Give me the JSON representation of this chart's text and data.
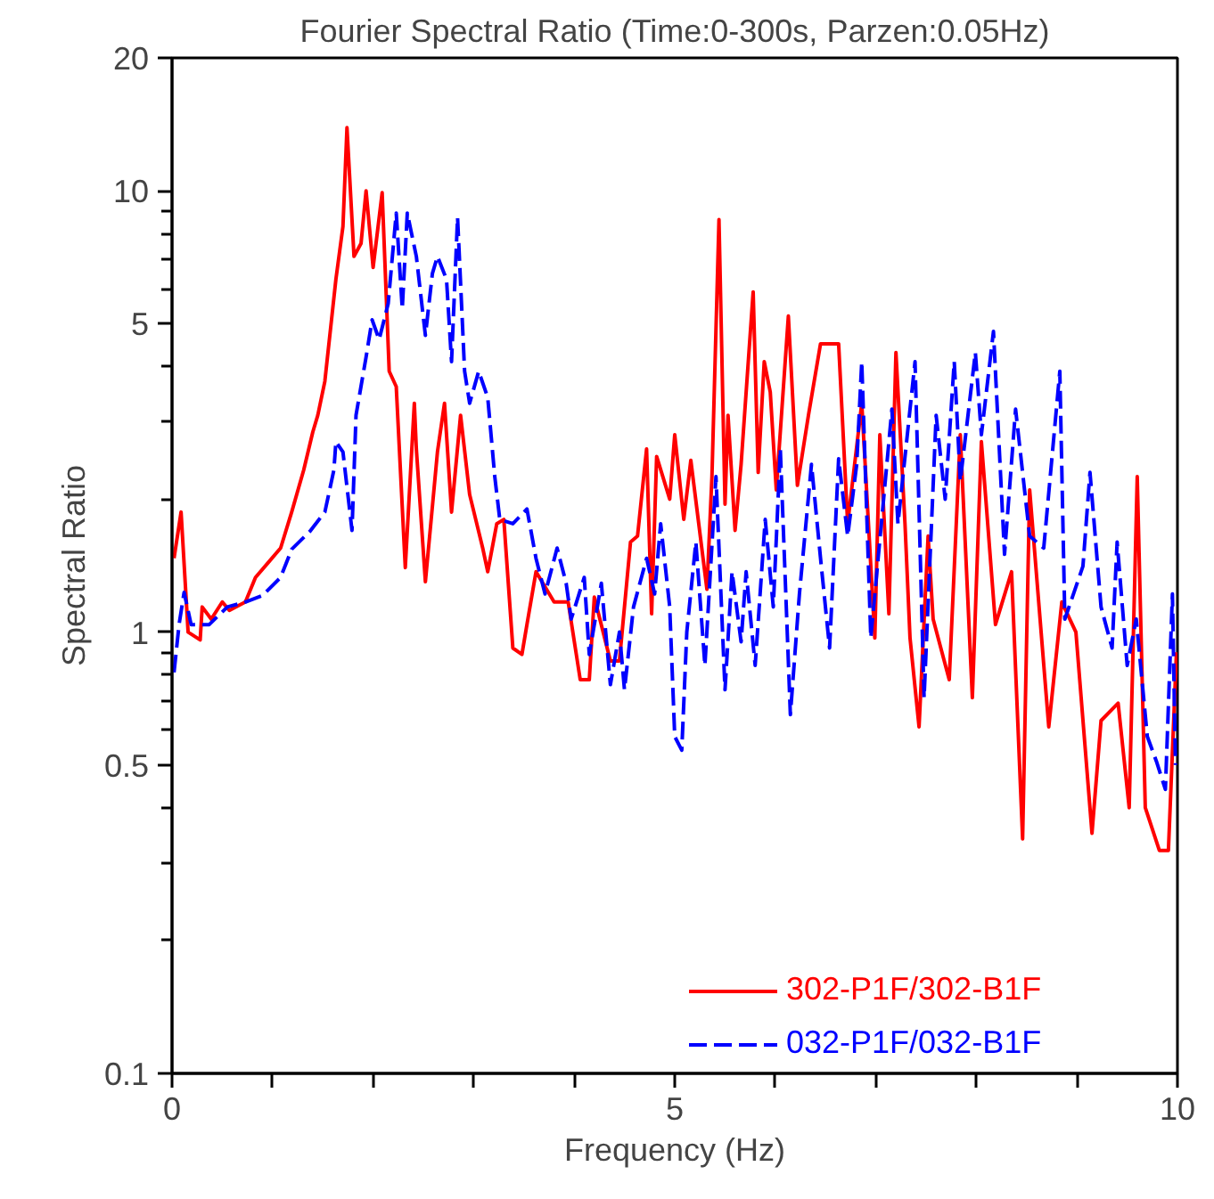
{
  "chart_data": {
    "type": "line",
    "title": "Fourier Spectral Ratio (Time:0-300s, Parzen:0.05Hz)",
    "xlabel": "Frequency (Hz)",
    "ylabel": "Spectral Ratio",
    "log": "y",
    "grid": false,
    "legend": "bottom right",
    "xlim": [
      0,
      10
    ],
    "ylim": [
      0.1,
      20
    ],
    "xticks": [
      0,
      {
        "value": 1,
        "label": null
      },
      {
        "value": 2,
        "label": null
      },
      {
        "value": 3,
        "label": null
      },
      {
        "value": 4,
        "label": null
      },
      5,
      {
        "value": 6,
        "label": null
      },
      {
        "value": 7,
        "label": null
      },
      {
        "value": 8,
        "label": null
      },
      {
        "value": 9,
        "label": null
      },
      10
    ],
    "yticks": [
      0.1,
      {
        "value": 0.2,
        "label": null
      },
      {
        "value": 0.3,
        "label": null
      },
      {
        "value": 0.4,
        "label": null
      },
      0.5,
      {
        "value": 0.6,
        "label": null
      },
      {
        "value": 0.7,
        "label": null
      },
      {
        "value": 0.8,
        "label": null
      },
      {
        "value": 0.9,
        "label": null
      },
      1,
      {
        "value": 2,
        "label": null
      },
      {
        "value": 3,
        "label": null
      },
      {
        "value": 4,
        "label": null
      },
      5,
      {
        "value": 6,
        "label": null
      },
      {
        "value": 7,
        "label": null
      },
      {
        "value": 8,
        "label": null
      },
      {
        "value": 9,
        "label": null
      },
      10,
      20
    ],
    "series": [
      {
        "name": "302-P1F/302-B1F",
        "color": "#ff0000",
        "line_style": "solid",
        "x": [
          0.02,
          0.09,
          0.16,
          0.28,
          0.3,
          0.39,
          0.5,
          0.57,
          0.73,
          0.83,
          0.96,
          1.08,
          1.19,
          1.31,
          1.4,
          1.45,
          1.52,
          1.63,
          1.7,
          1.74,
          1.81,
          1.88,
          1.93,
          2.0,
          2.09,
          2.16,
          2.23,
          2.32,
          2.41,
          2.43,
          2.52,
          2.64,
          2.71,
          2.78,
          2.87,
          2.96,
          3.09,
          3.14,
          3.23,
          3.3,
          3.39,
          3.48,
          3.53,
          3.62,
          3.8,
          3.94,
          4.06,
          4.15,
          4.2,
          4.36,
          4.45,
          4.56,
          4.63,
          4.72,
          4.77,
          4.82,
          4.95,
          5.0,
          5.09,
          5.16,
          5.32,
          5.37,
          5.44,
          5.5,
          5.53,
          5.6,
          5.66,
          5.78,
          5.83,
          5.89,
          5.95,
          6.01,
          6.13,
          6.22,
          6.33,
          6.45,
          6.63,
          6.72,
          6.86,
          6.99,
          7.04,
          7.13,
          7.2,
          7.29,
          7.34,
          7.43,
          7.52,
          7.57,
          7.73,
          7.84,
          7.96,
          8.05,
          8.19,
          8.35,
          8.46,
          8.53,
          8.72,
          8.85,
          8.99,
          9.15,
          9.24,
          9.41,
          9.52,
          9.6,
          9.68,
          9.82,
          9.91,
          9.99
        ],
        "values": [
          1.47,
          1.87,
          1.0,
          0.96,
          1.14,
          1.07,
          1.17,
          1.12,
          1.17,
          1.33,
          1.44,
          1.55,
          1.87,
          2.33,
          2.84,
          3.1,
          3.7,
          6.3,
          8.3,
          13.9,
          7.1,
          7.6,
          10,
          6.7,
          9.9,
          3.9,
          3.6,
          1.4,
          3.3,
          2.6,
          1.3,
          2.56,
          3.3,
          1.87,
          3.1,
          2.05,
          1.55,
          1.37,
          1.76,
          1.8,
          0.92,
          0.89,
          1.04,
          1.37,
          1.17,
          1.17,
          0.78,
          0.78,
          1.2,
          0.86,
          0.86,
          1.6,
          1.65,
          2.6,
          1.1,
          2.5,
          2.0,
          2.8,
          1.8,
          2.45,
          1.25,
          2.25,
          8.6,
          1.95,
          3.1,
          1.7,
          2.4,
          5.9,
          2.3,
          4.1,
          3.5,
          2.1,
          5.2,
          2.15,
          3.1,
          4.5,
          4.5,
          1.76,
          3.3,
          0.97,
          2.8,
          1.1,
          4.3,
          1.76,
          0.97,
          0.61,
          1.65,
          1.07,
          0.78,
          2.8,
          0.71,
          2.7,
          1.04,
          1.37,
          0.34,
          2.1,
          0.61,
          1.17,
          1.0,
          0.35,
          0.63,
          0.69,
          0.4,
          2.25,
          0.4,
          0.32,
          0.32,
          0.9
        ]
      },
      {
        "name": "032-P1F/032-B1F",
        "color": "#0000ff",
        "line_style": "dashed",
        "x": [
          0.02,
          0.07,
          0.12,
          0.19,
          0.37,
          0.55,
          0.73,
          0.9,
          1.08,
          1.19,
          1.37,
          1.52,
          1.61,
          1.63,
          1.7,
          1.79,
          1.83,
          1.93,
          1.99,
          2.06,
          2.15,
          2.23,
          2.29,
          2.34,
          2.43,
          2.52,
          2.59,
          2.64,
          2.73,
          2.78,
          2.84,
          2.91,
          2.96,
          3.05,
          3.14,
          3.21,
          3.26,
          3.39,
          3.53,
          3.62,
          3.71,
          3.83,
          3.92,
          3.97,
          4.1,
          4.15,
          4.27,
          4.36,
          4.45,
          4.5,
          4.59,
          4.72,
          4.8,
          4.86,
          4.95,
          5.0,
          5.07,
          5.12,
          5.21,
          5.3,
          5.41,
          5.5,
          5.57,
          5.66,
          5.71,
          5.8,
          5.9,
          5.98,
          6.05,
          6.15,
          6.24,
          6.36,
          6.45,
          6.54,
          6.63,
          6.72,
          6.81,
          6.86,
          6.95,
          7.16,
          7.22,
          7.39,
          7.48,
          7.6,
          7.69,
          7.78,
          7.84,
          7.99,
          8.05,
          8.17,
          8.28,
          8.39,
          8.53,
          8.67,
          8.83,
          8.88,
          9.06,
          9.13,
          9.24,
          9.35,
          9.4,
          9.5,
          9.59,
          9.7,
          9.79,
          9.88,
          9.95,
          9.98
        ],
        "values": [
          0.81,
          1.04,
          1.23,
          1.04,
          1.04,
          1.14,
          1.17,
          1.21,
          1.33,
          1.54,
          1.69,
          1.87,
          2.33,
          2.7,
          2.56,
          1.7,
          3.1,
          4.2,
          5.1,
          4.6,
          5.55,
          8.9,
          5.4,
          8.9,
          7.1,
          4.7,
          6.5,
          7.1,
          6.3,
          4.1,
          8.7,
          3.9,
          3.3,
          3.9,
          3.4,
          2.25,
          1.8,
          1.76,
          1.9,
          1.47,
          1.22,
          1.55,
          1.29,
          1.07,
          1.33,
          0.89,
          1.29,
          0.76,
          1.0,
          0.74,
          1.14,
          1.47,
          1.22,
          1.76,
          1.14,
          0.58,
          0.54,
          1.0,
          1.6,
          0.84,
          2.25,
          0.74,
          1.37,
          0.95,
          1.37,
          0.84,
          1.8,
          1.14,
          2.6,
          0.65,
          1.22,
          2.4,
          1.47,
          0.92,
          2.47,
          1.65,
          2.4,
          4.1,
          0.97,
          3.2,
          1.76,
          4.1,
          0.71,
          3.1,
          2.0,
          4.1,
          2.2,
          4.3,
          2.8,
          4.8,
          1.5,
          3.2,
          1.65,
          1.55,
          3.9,
          1.07,
          1.41,
          2.3,
          1.14,
          0.92,
          1.6,
          0.84,
          1.07,
          0.58,
          0.51,
          0.44,
          1.22,
          0.5
        ]
      }
    ]
  }
}
